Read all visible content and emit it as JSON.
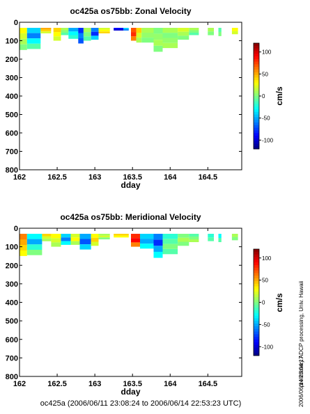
{
  "footer": "oc425a (2006/06/11 23:08:24 to 2006/06/14 22:53:23 UTC)",
  "side_text": {
    "processing": "preliminary ADCP processing,   Univ. Hawaii",
    "timestamp": "2006/06/14 23:04:17"
  },
  "colors": {
    "colormap": [
      "#000080",
      "#0000ff",
      "#0080ff",
      "#00ffff",
      "#80ff80",
      "#ffff00",
      "#ff8000",
      "#ff0000",
      "#800000"
    ]
  },
  "chart_data": [
    {
      "type": "heatmap",
      "title": "oc425a os75bb: Zonal Velocity",
      "xlabel": "dday",
      "ylabel": "",
      "xlim": [
        162,
        164.95
      ],
      "ylim": [
        800,
        0
      ],
      "x_ticks": [
        "162",
        "162.5",
        "163",
        "163.5",
        "164",
        "164.5"
      ],
      "y_ticks": [
        "0",
        "100",
        "200",
        "300",
        "400",
        "500",
        "600",
        "700",
        "800"
      ],
      "colorbar": {
        "label": "cm/s",
        "ticks": [
          "100",
          "50",
          "0",
          "-50",
          "-100"
        ],
        "range": [
          -120,
          120
        ]
      },
      "depth_top": 30,
      "segments": [
        {
          "x0": 162.0,
          "x1": 162.1,
          "bottom": 150,
          "values": [
            30,
            20,
            10,
            0
          ]
        },
        {
          "x0": 162.1,
          "x1": 162.28,
          "bottom": 145,
          "values": [
            -40,
            -60,
            -30,
            -10
          ]
        },
        {
          "x0": 162.28,
          "x1": 162.42,
          "bottom": 60,
          "values": [
            50,
            40,
            20
          ]
        },
        {
          "x0": 162.45,
          "x1": 162.55,
          "bottom": 100,
          "values": [
            40,
            30,
            20
          ]
        },
        {
          "x0": 162.55,
          "x1": 162.65,
          "bottom": 70,
          "values": [
            10,
            0,
            -10
          ]
        },
        {
          "x0": 162.65,
          "x1": 162.78,
          "bottom": 90,
          "values": [
            -50,
            -30,
            -20
          ]
        },
        {
          "x0": 162.78,
          "x1": 162.85,
          "bottom": 115,
          "values": [
            -80,
            -60,
            -70
          ]
        },
        {
          "x0": 162.85,
          "x1": 162.95,
          "bottom": 100,
          "values": [
            10,
            0,
            -10
          ]
        },
        {
          "x0": 162.95,
          "x1": 163.05,
          "bottom": 95,
          "values": [
            -60,
            -80,
            -40
          ]
        },
        {
          "x0": 163.05,
          "x1": 163.2,
          "bottom": 60,
          "values": [
            20,
            30,
            40
          ]
        },
        {
          "x0": 163.25,
          "x1": 163.38,
          "bottom": 45,
          "values": [
            -90,
            -100
          ]
        },
        {
          "x0": 163.38,
          "x1": 163.45,
          "bottom": 45,
          "values": [
            -40,
            -60
          ]
        },
        {
          "x0": 163.48,
          "x1": 163.55,
          "bottom": 100,
          "values": [
            70,
            80,
            60
          ]
        },
        {
          "x0": 163.55,
          "x1": 163.62,
          "bottom": 110,
          "values": [
            40,
            20,
            10
          ]
        },
        {
          "x0": 163.62,
          "x1": 163.78,
          "bottom": 110,
          "values": [
            10,
            5,
            0
          ]
        },
        {
          "x0": 163.78,
          "x1": 163.9,
          "bottom": 160,
          "values": [
            0,
            5,
            10,
            0
          ]
        },
        {
          "x0": 163.9,
          "x1": 164.1,
          "bottom": 140,
          "values": [
            10,
            0,
            5,
            10
          ]
        },
        {
          "x0": 164.1,
          "x1": 164.25,
          "bottom": 95,
          "values": [
            20,
            10,
            0
          ]
        },
        {
          "x0": 164.25,
          "x1": 164.38,
          "bottom": 70,
          "values": [
            10,
            0,
            -10
          ]
        },
        {
          "x0": 164.5,
          "x1": 164.58,
          "bottom": 70,
          "values": [
            10,
            0
          ]
        },
        {
          "x0": 164.64,
          "x1": 164.68,
          "bottom": 75,
          "values": [
            -10,
            0
          ]
        },
        {
          "x0": 164.82,
          "x1": 164.9,
          "bottom": 65,
          "values": [
            30,
            20
          ]
        }
      ]
    },
    {
      "type": "heatmap",
      "title": "oc425a os75bb: Meridional Velocity",
      "xlabel": "dday",
      "ylabel": "",
      "xlim": [
        162,
        164.95
      ],
      "ylim": [
        800,
        0
      ],
      "x_ticks": [
        "162",
        "162.5",
        "163",
        "163.5",
        "164",
        "164.5"
      ],
      "y_ticks": [
        "0",
        "100",
        "200",
        "300",
        "400",
        "500",
        "600",
        "700",
        "800"
      ],
      "colorbar": {
        "label": "cm/s",
        "ticks": [
          "100",
          "50",
          "0",
          "-50",
          "-100"
        ],
        "range": [
          -120,
          120
        ]
      },
      "depth_top": 30,
      "segments": [
        {
          "x0": 162.0,
          "x1": 162.1,
          "bottom": 150,
          "values": [
            60,
            50,
            40,
            30
          ]
        },
        {
          "x0": 162.1,
          "x1": 162.3,
          "bottom": 145,
          "values": [
            -30,
            -50,
            -20,
            0
          ]
        },
        {
          "x0": 162.3,
          "x1": 162.42,
          "bottom": 70,
          "values": [
            40,
            20,
            10
          ]
        },
        {
          "x0": 162.42,
          "x1": 162.55,
          "bottom": 100,
          "values": [
            30,
            20,
            10
          ]
        },
        {
          "x0": 162.55,
          "x1": 162.68,
          "bottom": 90,
          "values": [
            -40,
            -60,
            -30
          ]
        },
        {
          "x0": 162.68,
          "x1": 162.8,
          "bottom": 90,
          "values": [
            20,
            30,
            10
          ]
        },
        {
          "x0": 162.8,
          "x1": 162.95,
          "bottom": 115,
          "values": [
            -50,
            -70,
            -40
          ]
        },
        {
          "x0": 162.95,
          "x1": 163.05,
          "bottom": 95,
          "values": [
            30,
            40,
            20
          ]
        },
        {
          "x0": 163.05,
          "x1": 163.2,
          "bottom": 60,
          "values": [
            10,
            20,
            0
          ]
        },
        {
          "x0": 163.25,
          "x1": 163.45,
          "bottom": 50,
          "values": [
            40,
            30
          ]
        },
        {
          "x0": 163.48,
          "x1": 163.6,
          "bottom": 100,
          "values": [
            80,
            90,
            60
          ]
        },
        {
          "x0": 163.6,
          "x1": 163.78,
          "bottom": 110,
          "values": [
            -40,
            -50,
            -30
          ]
        },
        {
          "x0": 163.78,
          "x1": 163.9,
          "bottom": 160,
          "values": [
            -60,
            -80,
            -50,
            -30
          ]
        },
        {
          "x0": 163.9,
          "x1": 164.1,
          "bottom": 140,
          "values": [
            -20,
            -10,
            0,
            -10
          ]
        },
        {
          "x0": 164.1,
          "x1": 164.25,
          "bottom": 95,
          "values": [
            0,
            10,
            0
          ]
        },
        {
          "x0": 164.25,
          "x1": 164.38,
          "bottom": 75,
          "values": [
            -10,
            0,
            10
          ]
        },
        {
          "x0": 164.5,
          "x1": 164.58,
          "bottom": 70,
          "values": [
            -20,
            -10
          ]
        },
        {
          "x0": 164.64,
          "x1": 164.68,
          "bottom": 75,
          "values": [
            -30,
            -10
          ]
        },
        {
          "x0": 164.82,
          "x1": 164.9,
          "bottom": 65,
          "values": [
            10,
            0
          ]
        }
      ]
    }
  ]
}
